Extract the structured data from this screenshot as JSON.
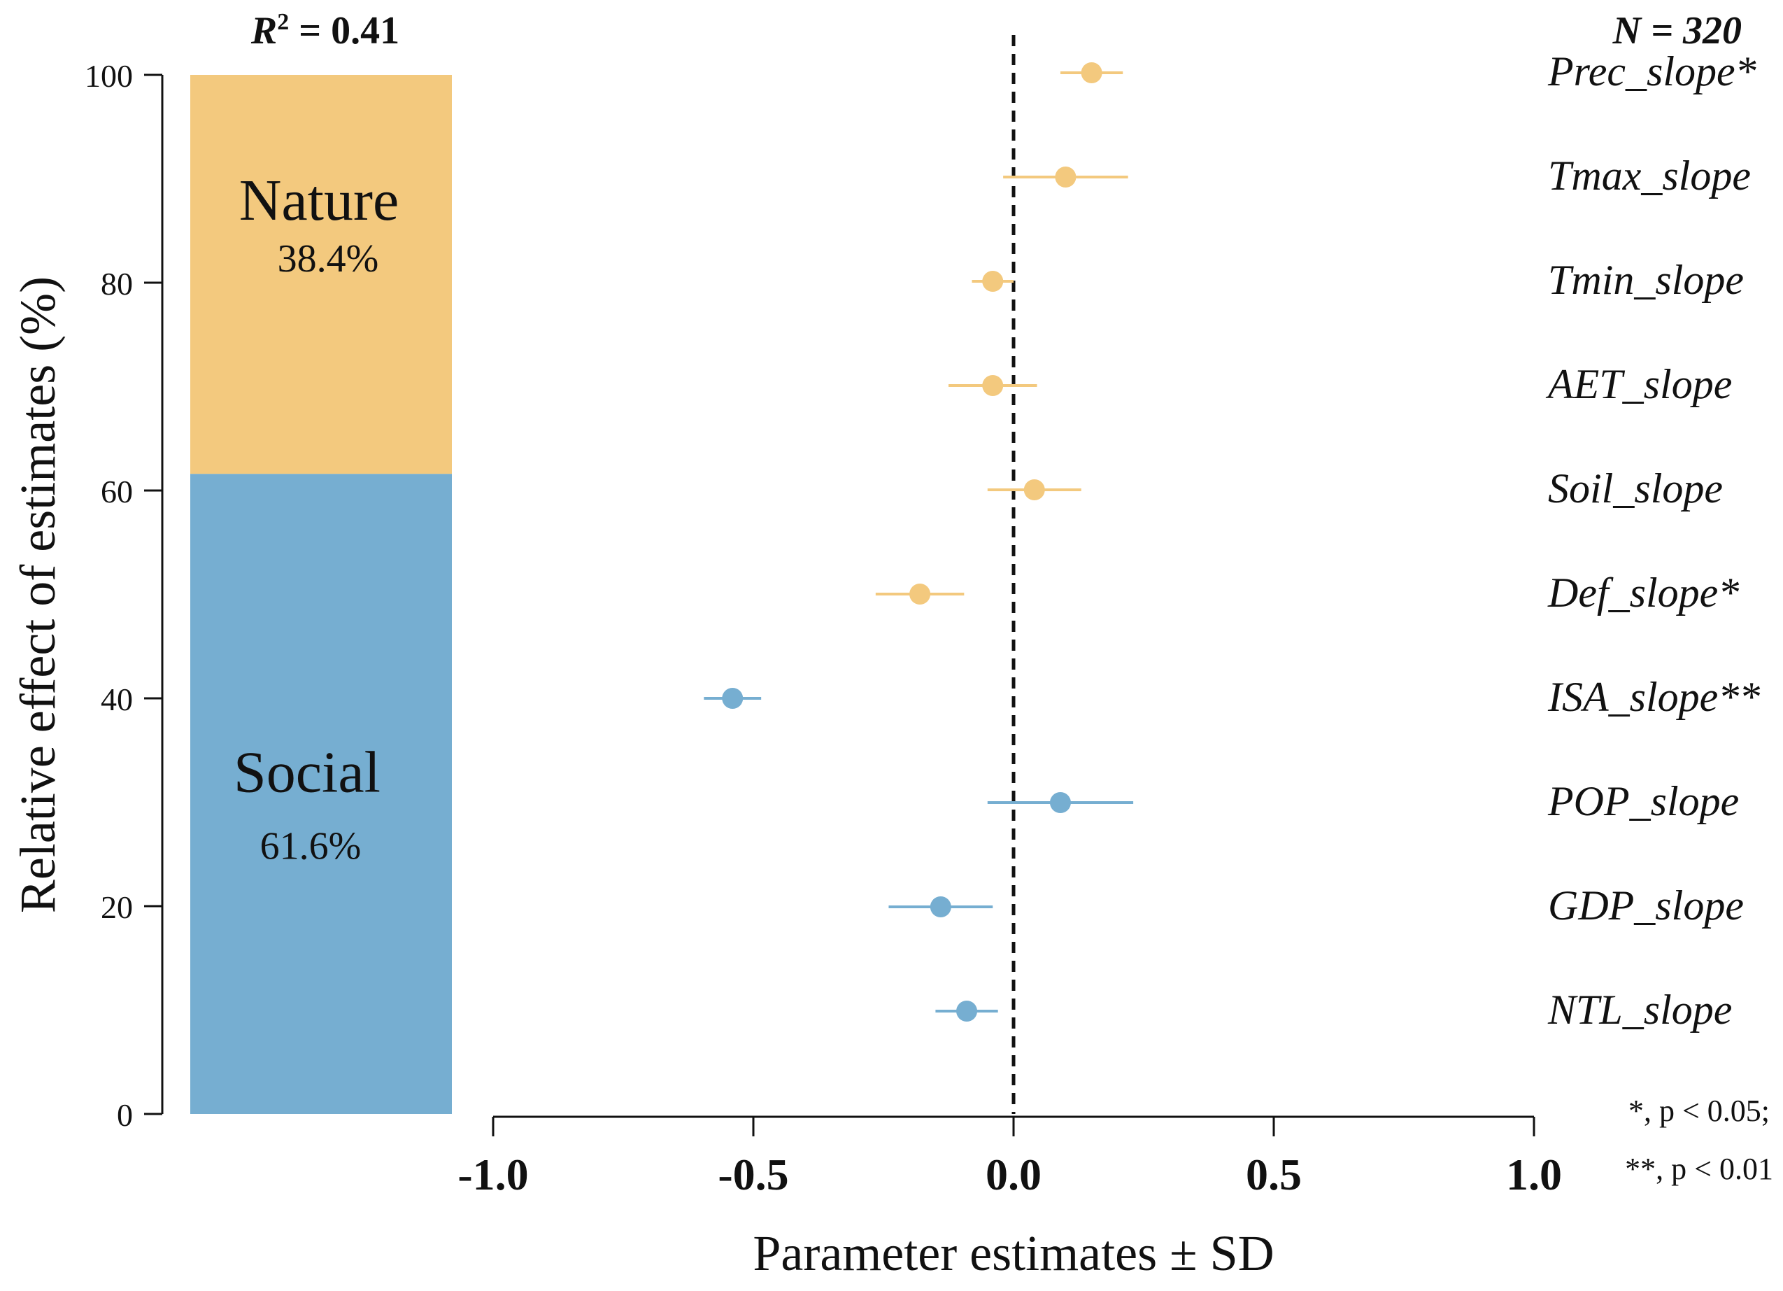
{
  "colors": {
    "nature": "#F3C97E",
    "social": "#76AED1",
    "axis": "#111111",
    "zero_line": "#111111"
  },
  "header": {
    "r2_label": "R",
    "r2_sup": "2",
    "r2_value": " = 0.41",
    "n_label": "N = 320"
  },
  "bar_panel": {
    "ylabel": "Relative effect of estimates (%)",
    "ylim": [
      0,
      100
    ],
    "yticks": [
      "0",
      "20",
      "40",
      "60",
      "80",
      "100"
    ],
    "nature": {
      "label": "Nature",
      "percent": 38.4,
      "percent_label": "38.4%"
    },
    "social": {
      "label": "Social",
      "percent": 61.6,
      "percent_label": "61.6%"
    }
  },
  "forest_panel": {
    "xlabel": "Parameter estimates ± SD",
    "xlim": [
      -1.0,
      1.0
    ],
    "xticks": [
      "-1.0",
      "-0.5",
      "0.0",
      "0.5",
      "1.0"
    ],
    "zero_line": 0.0
  },
  "chart_data": {
    "type": "scatter",
    "title": "",
    "xlabel": "Parameter estimates ± SD",
    "ylabel": "Relative effect of estimates (%)",
    "xlim": [
      -1.0,
      1.0
    ],
    "stacked_bar": {
      "categories": [
        "Nature",
        "Social"
      ],
      "values": [
        38.4,
        61.6
      ],
      "ylim": [
        0,
        100
      ]
    },
    "series": [
      {
        "name": "Nature",
        "points": [
          {
            "label": "Prec_slope*",
            "estimate": 0.15,
            "sd": 0.06
          },
          {
            "label": "Tmax_slope",
            "estimate": 0.1,
            "sd": 0.12
          },
          {
            "label": "Tmin_slope",
            "estimate": -0.04,
            "sd": 0.04
          },
          {
            "label": "AET_slope",
            "estimate": -0.04,
            "sd": 0.085
          },
          {
            "label": "Soil_slope",
            "estimate": 0.04,
            "sd": 0.09
          },
          {
            "label": "Def_slope*",
            "estimate": -0.18,
            "sd": 0.085
          }
        ]
      },
      {
        "name": "Social",
        "points": [
          {
            "label": "ISA_slope**",
            "estimate": -0.54,
            "sd": 0.055
          },
          {
            "label": "POP_slope",
            "estimate": 0.09,
            "sd": 0.14
          },
          {
            "label": "GDP_slope",
            "estimate": -0.14,
            "sd": 0.1
          },
          {
            "label": "NTL_slope",
            "estimate": -0.09,
            "sd": 0.06
          }
        ]
      }
    ],
    "significance_notes": [
      "*, p < 0.05;",
      "**, p < 0.01"
    ]
  }
}
